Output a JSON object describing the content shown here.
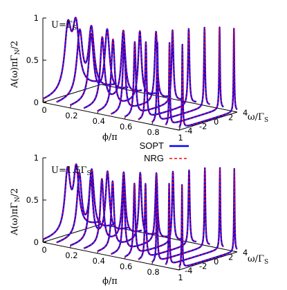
{
  "chart_data": [
    {
      "type": "line",
      "subtype": "3d-waterfall",
      "panel_label": "U=Γ",
      "panel_label_sub": "S",
      "xlabel": "ϕ/π",
      "ylabel_main": "ω/Γ",
      "ylabel_sub": "S",
      "zlabel_main": "A(ω)πΓ",
      "zlabel_sub": "N",
      "zlabel_tail": "/2",
      "x_ticks": [
        "0",
        "0.2",
        "0.4",
        "0.6",
        "0.8",
        "1"
      ],
      "y_ticks": [
        "-4",
        "-2",
        "0",
        "2",
        "4"
      ],
      "z_ticks": [
        "0",
        "0.5",
        "1"
      ],
      "xlim": [
        0,
        1
      ],
      "ylim": [
        -4,
        4
      ],
      "zlim": [
        0,
        1
      ],
      "phi_values": [
        0,
        0.1,
        0.2,
        0.3,
        0.4,
        0.5,
        0.6,
        0.7,
        0.8,
        0.9,
        1.0
      ],
      "peak_positions": [
        0.55,
        0.8,
        1.1,
        1.45,
        1.85,
        2.2,
        2.6,
        2.95,
        3.25,
        3.45,
        3.55
      ],
      "peak_heights": [
        0.72,
        0.74,
        0.76,
        0.78,
        0.8,
        0.82,
        0.86,
        0.9,
        0.94,
        0.97,
        0.99
      ],
      "peak_widths": [
        0.55,
        0.47,
        0.4,
        0.33,
        0.27,
        0.21,
        0.16,
        0.12,
        0.09,
        0.07,
        0.06
      ],
      "series": [
        {
          "name": "SOPT",
          "color": "#0000ff",
          "style": "solid"
        },
        {
          "name": "NRG",
          "color": "#ff0000",
          "style": "dashed"
        }
      ]
    },
    {
      "type": "line",
      "subtype": "3d-waterfall",
      "panel_label": "U=1.5Γ",
      "panel_label_sub": "S",
      "xlabel": "ϕ/π",
      "ylabel_main": "ω/Γ",
      "ylabel_sub": "S",
      "zlabel_main": "A(ω)πΓ",
      "zlabel_sub": "N",
      "zlabel_tail": "/2",
      "x_ticks": [
        "0",
        "0.2",
        "0.4",
        "0.6",
        "0.8",
        "1"
      ],
      "y_ticks": [
        "-4",
        "-2",
        "0",
        "2",
        "4"
      ],
      "z_ticks": [
        "0",
        "0.5",
        "1"
      ],
      "xlim": [
        0,
        1
      ],
      "ylim": [
        -4,
        4
      ],
      "zlim": [
        0,
        1
      ],
      "phi_values": [
        0,
        0.1,
        0.2,
        0.3,
        0.4,
        0.5,
        0.6,
        0.7,
        0.8,
        0.9,
        1.0
      ],
      "peak_positions": [
        0.6,
        0.85,
        1.15,
        1.5,
        1.9,
        2.25,
        2.65,
        3.0,
        3.3,
        3.5,
        3.6
      ],
      "peak_heights": [
        0.7,
        0.72,
        0.74,
        0.76,
        0.78,
        0.8,
        0.84,
        0.88,
        0.93,
        0.96,
        0.98
      ],
      "peak_widths": [
        0.45,
        0.38,
        0.32,
        0.27,
        0.22,
        0.18,
        0.14,
        0.11,
        0.08,
        0.065,
        0.055
      ],
      "series": [
        {
          "name": "SOPT",
          "color": "#0000ff",
          "style": "solid"
        },
        {
          "name": "NRG",
          "color": "#ff0000",
          "style": "dashed"
        }
      ]
    }
  ],
  "legend": {
    "entries": [
      {
        "name": "SOPT",
        "color": "#0000ff",
        "style": "solid"
      },
      {
        "name": "NRG",
        "color": "#ff0000",
        "style": "dashed"
      }
    ],
    "placement": "between-panels-right"
  }
}
